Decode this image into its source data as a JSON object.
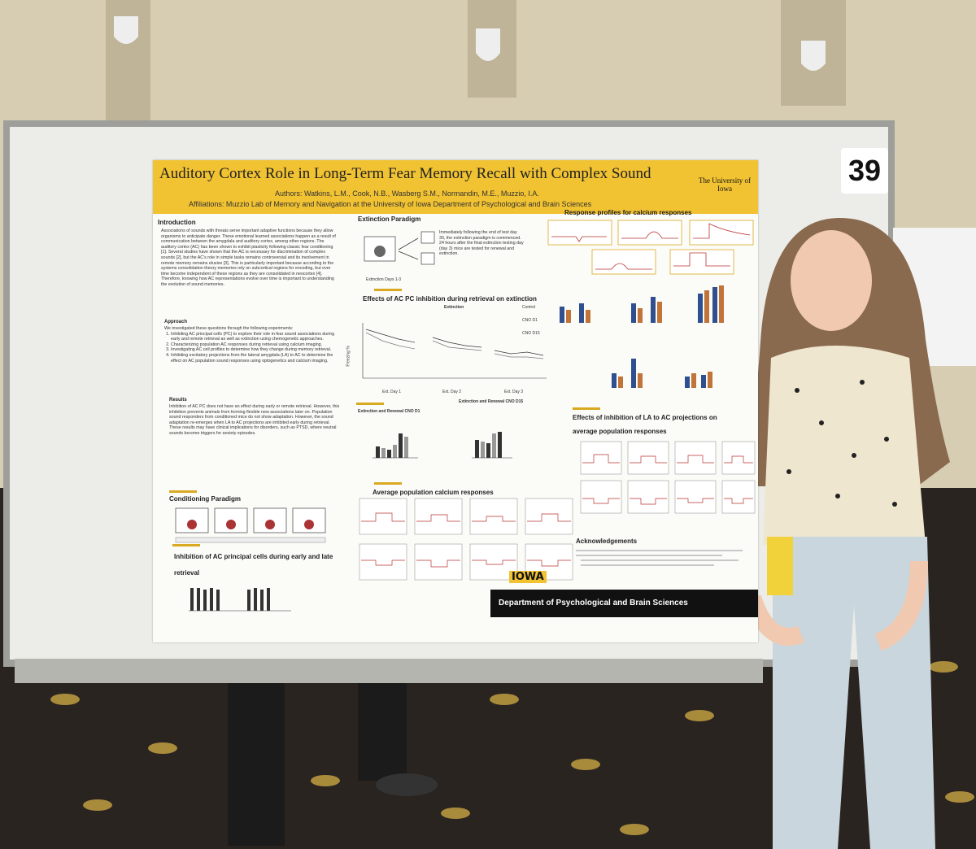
{
  "board_number": "39",
  "poster": {
    "title": "Auditory Cortex Role in Long-Term Fear Memory Recall with Complex Sound",
    "authors": "Authors: Watkins, L.M., Cook, N.B., Wasberg S.M., Normandin, M.E., Muzzio, I.A.",
    "affiliations": "Affiliations: Muzzio Lab of Memory and Navigation at the University of Iowa Department of Psychological and Brain Sciences",
    "logo": "The University of Iowa",
    "introduction": {
      "heading": "Introduction",
      "text": "Associations of sounds with threats serve important adaptive functions because they allow organisms to anticipate danger. These emotional learned associations happen as a result of communication between the amygdala and auditory cortex, among other regions. The auditory cortex (AC) has been shown to exhibit plasticity following classic fear conditioning [1]. Several studies have shown that the AC is necessary for discrimination of complex sounds [2], but the AC's role in simple tasks remains controversial and its involvement in remote memory remains elusive [3]. This is particularly important because according to the systems consolidation theory memories rely on subcortical regions for encoding, but over time become independent of these regions as they are consolidated in neocortex [4]. Therefore, knowing how AC representations evolve over time is important to understanding the evolution of sound memories."
    },
    "approach": {
      "heading": "Approach",
      "intro": "We investigated these questions through the following experiments:",
      "items": [
        "Inhibiting AC principal cells (PC) to explore their role in fear sound associations during early and remote retrieval as well as extinction using chemogenetic approaches.",
        "Characterizing population AC responses during retrieval using calcium imaging.",
        "Investigating AC cell profiles to determine how they change during memory retrieval.",
        "Inhibiting excitatory projections from the lateral amygdala (LA) to AC to determine the effect on AC population sound responses using optogenetics and calcium imaging."
      ]
    },
    "results": {
      "heading": "Results",
      "text": "Inhibition of AC PC does not have an effect during early or remote retrieval. However, this inhibition prevents animals from forming flexible new associations later on. Population sound responders from conditioned mice do not show adaptation. However, the sound adaptation re-emerges when LA to AC projections are inhibited early during retrieval. These results may have clinical implications for disorders, such as PTSD, where neutral sounds become triggers for anxiety episodes."
    },
    "extinction_paradigm": {
      "heading": "Extinction Paradigm",
      "text": "Immediately following the end of test day 30, the extinction paradigm is commenced. 24 hours after the final extinction testing day (day 3) mice are tested for renewal and extinction.",
      "label": "Extinction Days 1-3"
    },
    "response_profiles": "Response profiles for calcium responses",
    "effects_pc": {
      "heading": "Effects of AC PC inhibition during retrieval on extinction",
      "subtitle": "Extinction",
      "legend": [
        "Control",
        "CNO D1",
        "CNO D15"
      ],
      "days": [
        "Ext. Day 1",
        "Ext. Day 2",
        "Ext. Day 3"
      ],
      "ylabel": "Freezing %"
    },
    "renewal_d1": "Extinction and Renewal CNO D1",
    "renewal_d15": "Extinction and Renewal CNO D15",
    "conditioning": "Conditioning Paradigm",
    "inhibition_pc": "Inhibition of AC principal cells during early and late retrieval",
    "average_population": "Average population calcium responses",
    "effects_la": "Effects of inhibition of LA to AC projections on average population responses",
    "acknowledgements": "Acknowledgements",
    "department": "Department of Psychological and Brain Sciences",
    "iowa": "IOWA"
  }
}
